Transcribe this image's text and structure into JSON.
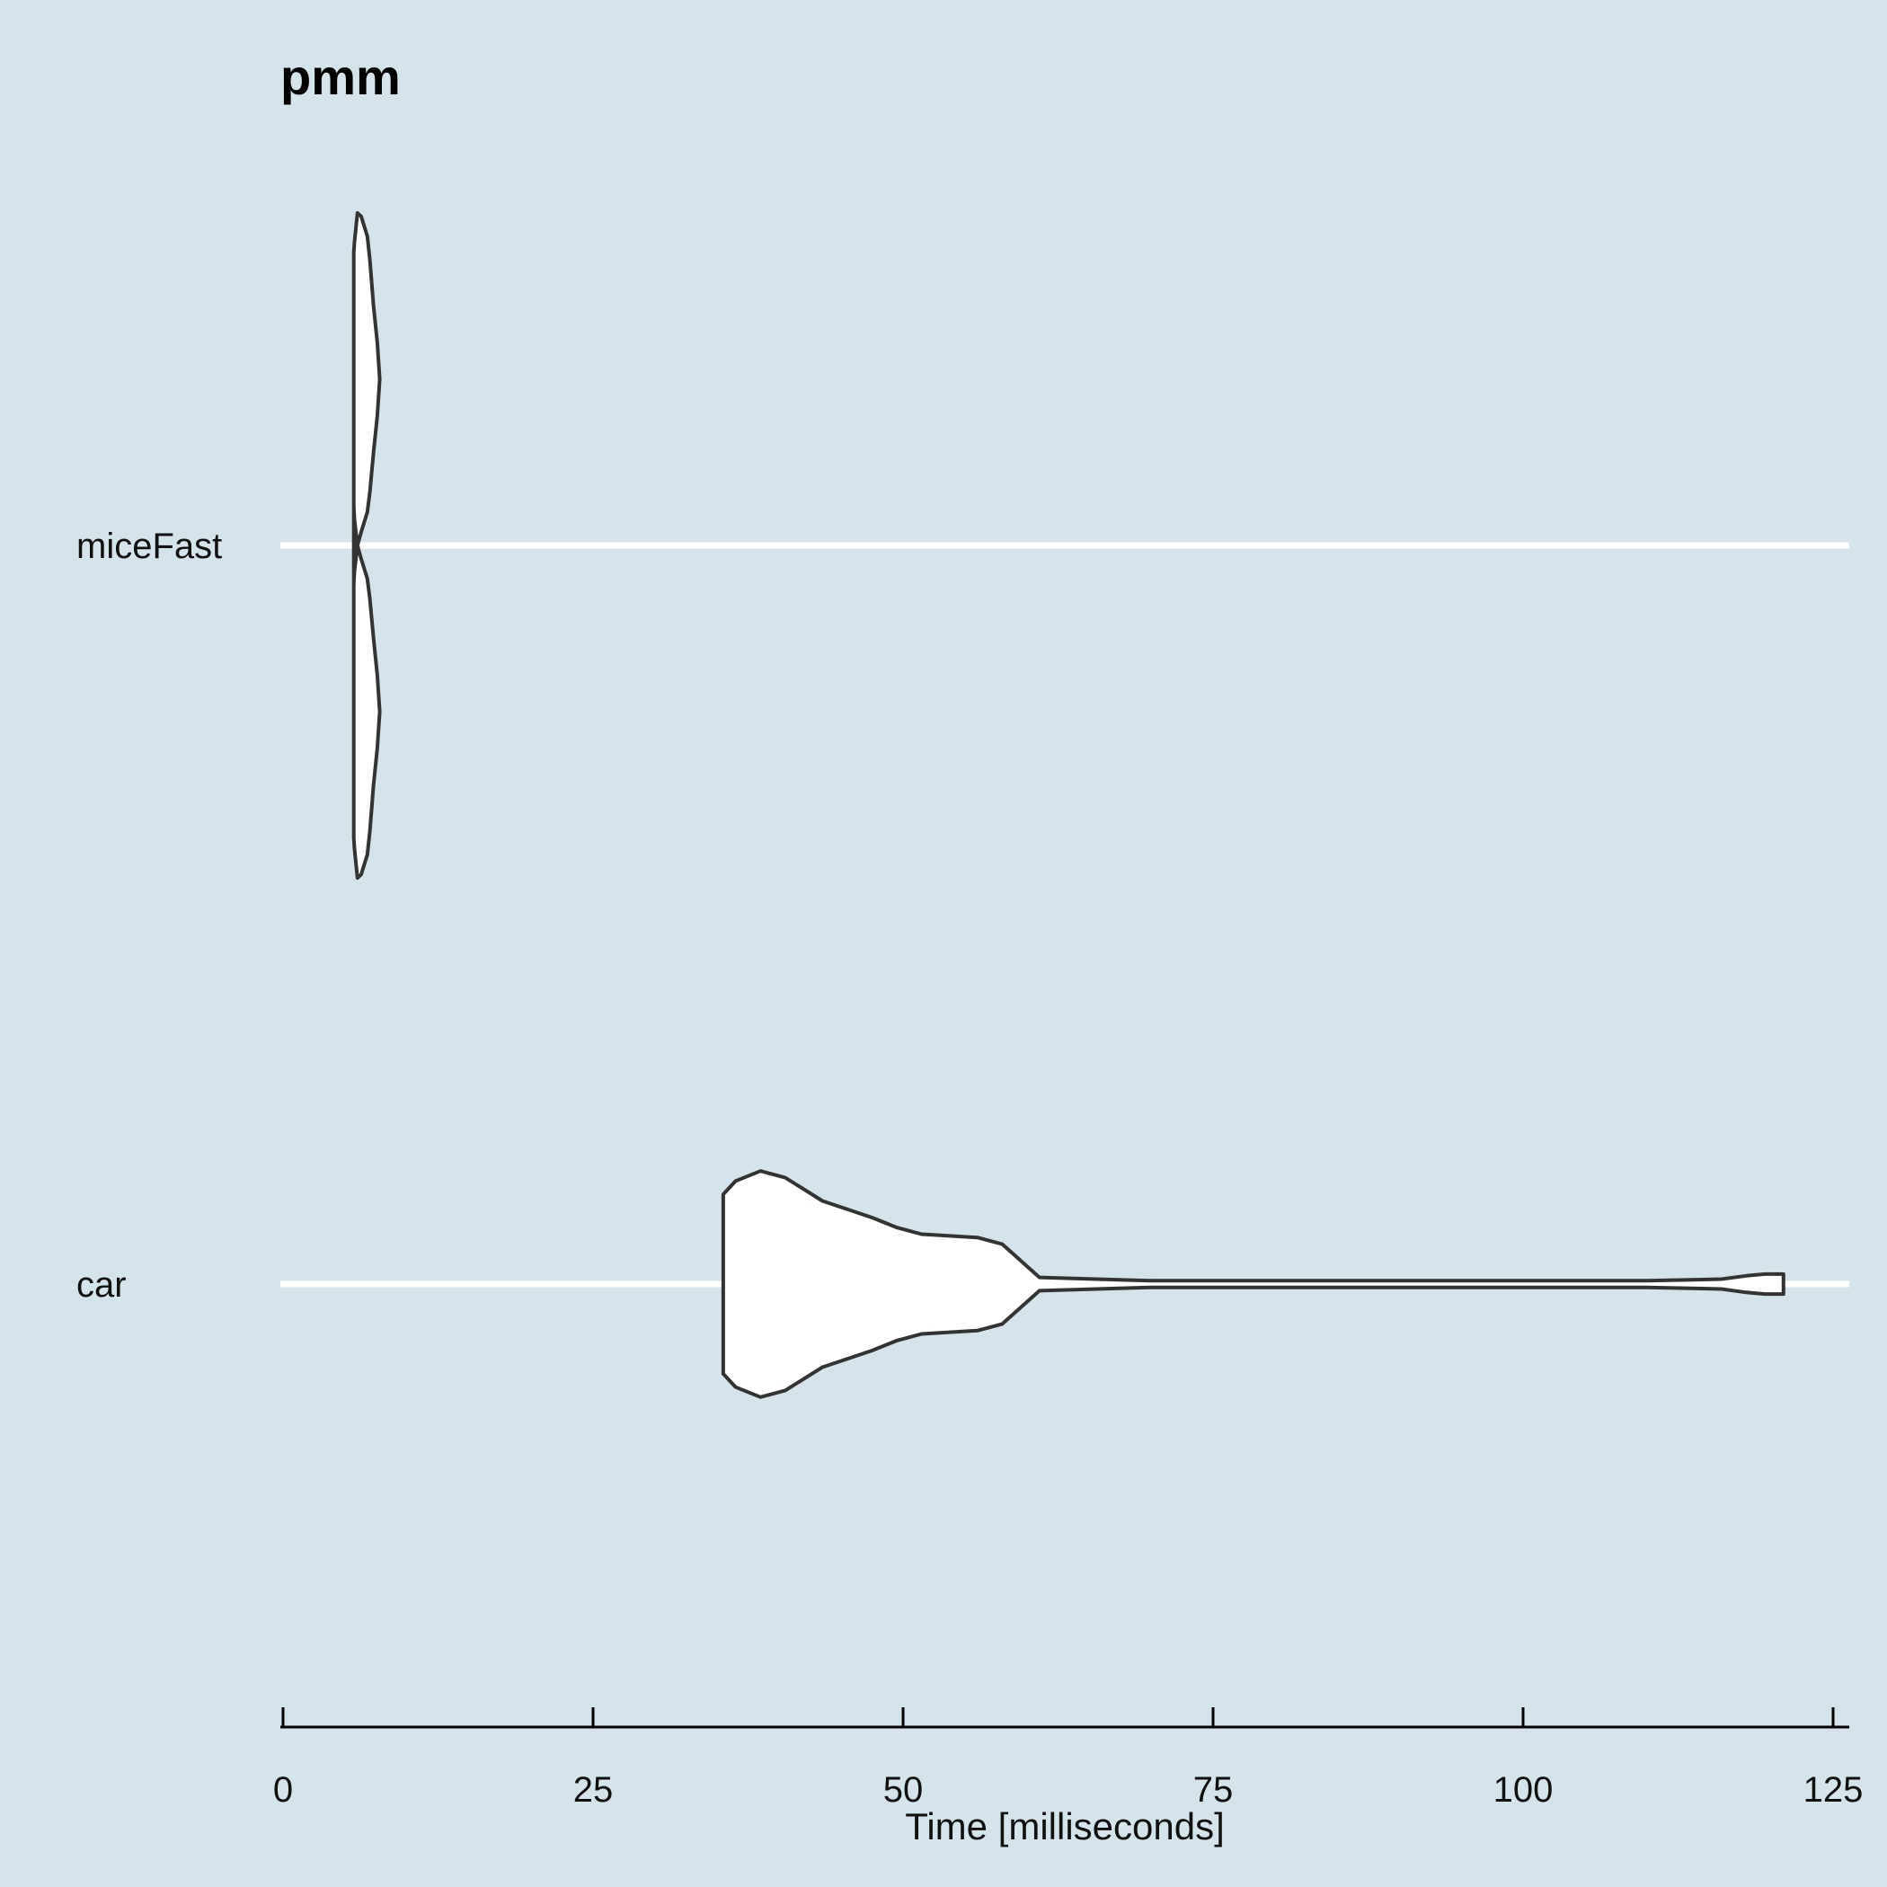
{
  "chart_data": {
    "type": "violin",
    "orientation": "horizontal",
    "title": "pmm",
    "xlabel": "Time [milliseconds]",
    "ylabel": "",
    "xlim": [
      0,
      125
    ],
    "xticks": [
      "0",
      "25",
      "50",
      "75",
      "100",
      "125"
    ],
    "xtick_values": [
      0,
      25,
      50,
      75,
      100,
      125
    ],
    "grid": "horizontal lines at categories",
    "categories": [
      "miceFast",
      "car"
    ],
    "series": [
      {
        "category": "miceFast",
        "range": [
          5.7,
          7.8
        ],
        "density_profile": [
          [
            5.7,
            0.88
          ],
          [
            5.75,
            0.91
          ],
          [
            6.0,
            1.0
          ],
          [
            6.3,
            0.99
          ],
          [
            6.8,
            0.93
          ],
          [
            7.0,
            0.86
          ],
          [
            7.3,
            0.72
          ],
          [
            7.6,
            0.61
          ],
          [
            7.8,
            0.5
          ],
          [
            7.6,
            0.39
          ],
          [
            7.3,
            0.28
          ],
          [
            7.0,
            0.16
          ],
          [
            6.8,
            0.1
          ],
          [
            6.3,
            0.04
          ],
          [
            6.0,
            0.0
          ],
          [
            5.75,
            0.08
          ],
          [
            5.7,
            0.12
          ]
        ]
      },
      {
        "category": "car",
        "range": [
          35.5,
          121
        ],
        "density_profile": [
          [
            35.5,
            0.27
          ],
          [
            36.5,
            0.31
          ],
          [
            38.5,
            0.34
          ],
          [
            40.5,
            0.32
          ],
          [
            43.5,
            0.25
          ],
          [
            47.5,
            0.2
          ],
          [
            49.5,
            0.17
          ],
          [
            51.5,
            0.15
          ],
          [
            56,
            0.14
          ],
          [
            58,
            0.12
          ],
          [
            61,
            0.02
          ],
          [
            70,
            0.01
          ],
          [
            90,
            0.01
          ],
          [
            110,
            0.01
          ],
          [
            116,
            0.015
          ],
          [
            118,
            0.025
          ],
          [
            119.5,
            0.03
          ],
          [
            121,
            0.03
          ]
        ]
      }
    ],
    "colors": {
      "background": "#d5e4eb",
      "violin_fill": "#ffffff",
      "violin_stroke": "#333333",
      "gridline": "#ffffff",
      "axis": "#000000"
    }
  }
}
